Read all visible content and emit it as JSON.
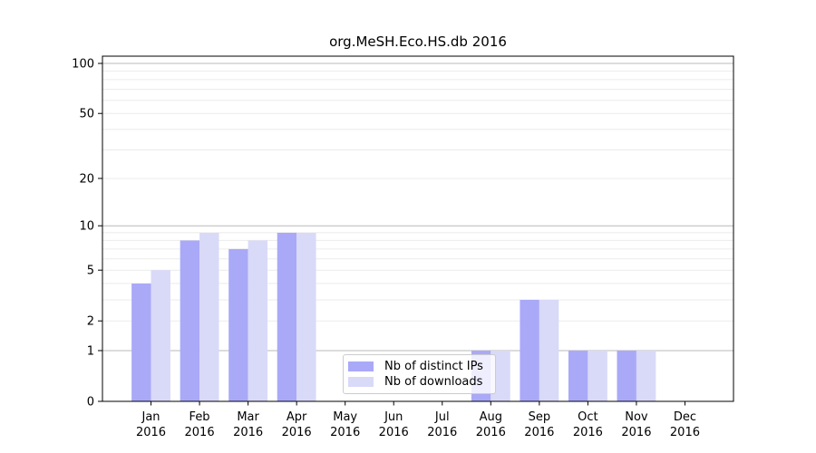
{
  "figure": {
    "background": "#ffffff"
  },
  "chart_data": {
    "type": "bar",
    "title": "org.MeSH.Eco.HS.db 2016",
    "categories": [
      "Jan",
      "Feb",
      "Mar",
      "Apr",
      "May",
      "Jun",
      "Jul",
      "Aug",
      "Sep",
      "Oct",
      "Nov",
      "Dec"
    ],
    "x_year_suffix": "2016",
    "series": [
      {
        "name": "Nb of distinct IPs",
        "color": "#a9a9f8",
        "values": [
          4,
          8,
          7,
          9,
          0,
          0,
          0,
          1,
          3,
          1,
          1,
          0
        ]
      },
      {
        "name": "Nb of downloads",
        "color": "#d9d9f8",
        "values": [
          5,
          9,
          8,
          9,
          0,
          0,
          0,
          1,
          3,
          1,
          1,
          0
        ]
      }
    ],
    "yscale": "log1p",
    "ylim": [
      0,
      110
    ],
    "ytick_labels": [
      "0",
      "1",
      "2",
      "5",
      "10",
      "20",
      "50",
      "100"
    ],
    "yticks": [
      0,
      1,
      2,
      5,
      10,
      20,
      50,
      100
    ],
    "major_gridlines": [
      1,
      10,
      100
    ],
    "minor_gridlines": [
      2,
      3,
      4,
      5,
      6,
      7,
      8,
      9,
      20,
      30,
      40,
      50,
      60,
      70,
      80,
      90
    ],
    "grid": "on",
    "legend_position": "lower center"
  },
  "colors": {
    "axis": "#000000",
    "tick_text": "#000000",
    "major_grid": "#b8b8b8",
    "minor_grid": "#ebebeb"
  }
}
